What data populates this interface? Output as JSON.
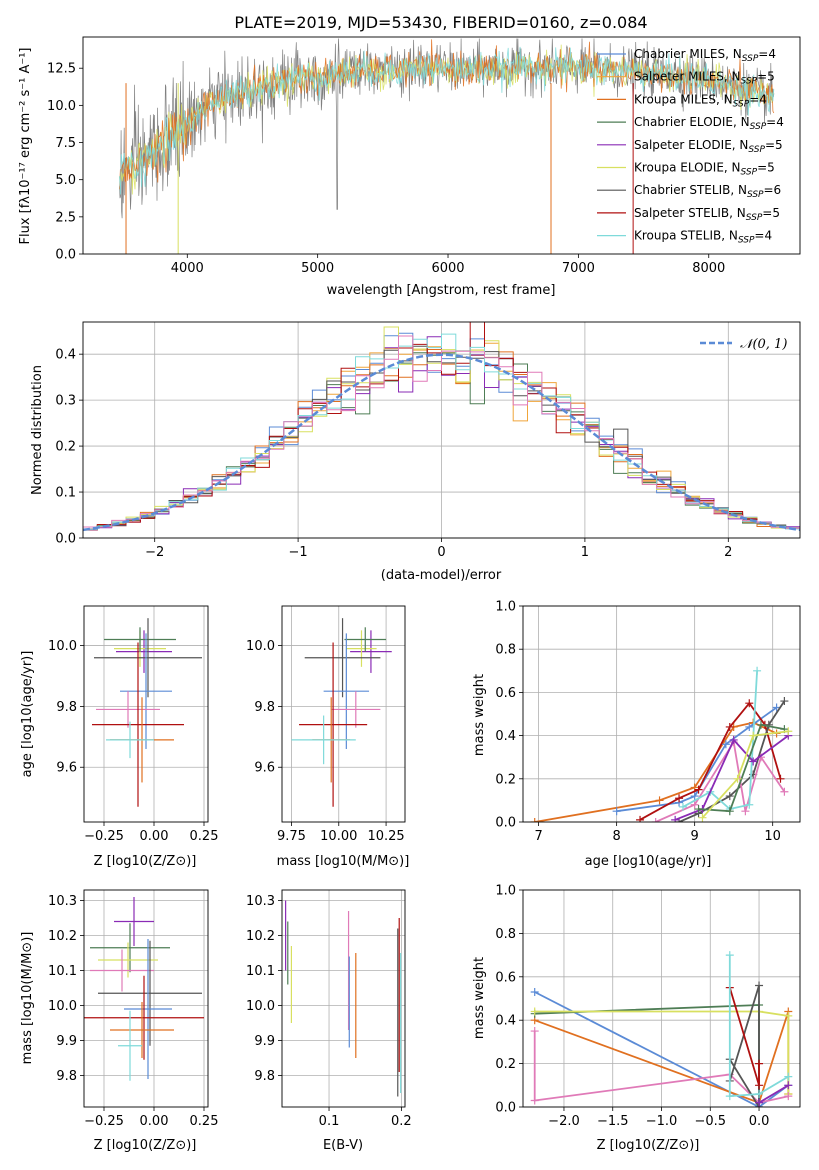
{
  "colors": {
    "Chabrier MILES": "#5b8bd6",
    "Salpeter MILES": "#f0a53a",
    "Kroupa MILES": "#e07020",
    "Chabrier ELODIE": "#4e7d55",
    "Salpeter ELODIE": "#8a2bb5",
    "Kroupa ELODIE": "#d8e060",
    "Chabrier STELIB": "#555555",
    "Salpeter STELIB": "#b01010",
    "Kroupa STELIB": "#7fdada",
    "pink": "#e07ab8",
    "spectrum": "#808080",
    "normal": "#5b8bd6"
  },
  "chart_data": [
    {
      "id": "spectrum",
      "type": "line",
      "title": "PLATE=2019, MJD=53430, FIBERID=0160, z=0.084",
      "xlabel": "wavelength [Angstrom, rest frame]",
      "ylabel": "Flux [fλ10⁻¹⁷ erg cm⁻² s⁻¹ A⁻¹]",
      "xlim": [
        3200,
        8700
      ],
      "ylim": [
        0,
        14.6
      ],
      "xticks": [
        "4000",
        "5000",
        "6000",
        "7000",
        "8000"
      ],
      "yticks": [
        "0.0",
        "2.5",
        "5.0",
        "7.5",
        "10.0",
        "12.5"
      ],
      "legend": [
        {
          "label": "Chabrier MILES, N",
          "sub": "SSP",
          "tail": "=4"
        },
        {
          "label": "Salpeter MILES, N",
          "sub": "SSP",
          "tail": "=5"
        },
        {
          "label": "Kroupa MILES, N",
          "sub": "SSP",
          "tail": "=4"
        },
        {
          "label": "Chabrier ELODIE, N",
          "sub": "SSP",
          "tail": "=4"
        },
        {
          "label": "Salpeter ELODIE, N",
          "sub": "SSP",
          "tail": "=5"
        },
        {
          "label": "Kroupa ELODIE, N",
          "sub": "SSP",
          "tail": "=5"
        },
        {
          "label": "Chabrier STELIB, N",
          "sub": "SSP",
          "tail": "=6"
        },
        {
          "label": "Salpeter STELIB, N",
          "sub": "SSP",
          "tail": "=5"
        },
        {
          "label": "Kroupa STELIB, N",
          "sub": "SSP",
          "tail": "=4"
        }
      ],
      "continuum": {
        "x": [
          3480,
          3550,
          3650,
          3800,
          4000,
          4200,
          4500,
          4800,
          5100,
          5400,
          5800,
          6200,
          6600,
          7000,
          7400,
          7800,
          8200,
          8500
        ],
        "y": [
          5.2,
          5.5,
          6.0,
          7.3,
          8.8,
          10.2,
          11.2,
          11.8,
          12.1,
          12.3,
          12.5,
          12.4,
          12.6,
          12.5,
          12.3,
          12.0,
          11.3,
          10.5
        ]
      }
    },
    {
      "id": "residuals",
      "type": "line",
      "xlabel": "(data-model)/error",
      "ylabel": "Normed distribution",
      "xlim": [
        -2.5,
        2.5
      ],
      "ylim": [
        0,
        0.47
      ],
      "xticks": [
        "−2",
        "−1",
        "0",
        "1",
        "2"
      ],
      "yticks": [
        "0.0",
        "0.1",
        "0.2",
        "0.3",
        "0.4"
      ],
      "legend_label": "N(0,1)",
      "normal": {
        "mean": 0,
        "sigma": 1
      }
    },
    {
      "id": "age-vs-Z",
      "type": "scatter",
      "xlabel": "Z [log10(Z/Z⊙)]",
      "ylabel": "age  [log10(age/yr)]",
      "xlim": [
        -0.35,
        0.27
      ],
      "ylim": [
        9.42,
        10.13
      ],
      "xticks": [
        "−0.25",
        "0.00",
        "0.25"
      ],
      "yticks": [
        "9.6",
        "9.8",
        "10.0"
      ],
      "points": [
        {
          "c": "Salpeter ELODIE",
          "x": -0.05,
          "y": 9.98,
          "xe": 0.14,
          "ye": 0.07
        },
        {
          "c": "Kroupa ELODIE",
          "x": -0.07,
          "y": 9.99,
          "xe": 0.13,
          "ye": 0.06
        },
        {
          "c": "Chabrier ELODIE",
          "x": -0.07,
          "y": 10.02,
          "xe": 0.18,
          "ye": 0.04
        },
        {
          "c": "Chabrier STELIB",
          "x": -0.03,
          "y": 9.96,
          "xe": 0.27,
          "ye": 0.13
        },
        {
          "c": "Chabrier MILES",
          "x": -0.04,
          "y": 9.85,
          "xe": 0.13,
          "ye": 0.19
        },
        {
          "c": "pink",
          "x": -0.13,
          "y": 9.79,
          "xe": 0.16,
          "ye": 0.06
        },
        {
          "c": "Salpeter STELIB",
          "x": -0.08,
          "y": 9.74,
          "xe": 0.23,
          "ye": 0.27
        },
        {
          "c": "Kroupa MILES",
          "x": -0.06,
          "y": 9.69,
          "xe": 0.16,
          "ye": 0.14
        },
        {
          "c": "Kroupa STELIB",
          "x": -0.12,
          "y": 9.69,
          "xe": 0.12,
          "ye": 0.06
        }
      ]
    },
    {
      "id": "age-vs-mass",
      "type": "scatter",
      "xlabel": "mass [log10(M/M⊙)]",
      "xlim": [
        9.7,
        10.35
      ],
      "ylim": [
        9.42,
        10.13
      ],
      "xticks": [
        "9.75",
        "10.00",
        "10.25"
      ],
      "yticks": [
        "9.6",
        "9.8",
        "10.0"
      ],
      "points": [
        {
          "c": "Salpeter ELODIE",
          "x": 10.17,
          "y": 9.98,
          "xe": 0.11,
          "ye": 0.07
        },
        {
          "c": "Kroupa ELODIE",
          "x": 10.12,
          "y": 9.99,
          "xe": 0.08,
          "ye": 0.06
        },
        {
          "c": "Chabrier ELODIE",
          "x": 10.14,
          "y": 10.02,
          "xe": 0.11,
          "ye": 0.04
        },
        {
          "c": "Chabrier STELIB",
          "x": 10.02,
          "y": 9.96,
          "xe": 0.2,
          "ye": 0.13
        },
        {
          "c": "Chabrier MILES",
          "x": 10.04,
          "y": 9.85,
          "xe": 0.12,
          "ye": 0.19
        },
        {
          "c": "pink",
          "x": 10.09,
          "y": 9.79,
          "xe": 0.13,
          "ye": 0.06
        },
        {
          "c": "Salpeter STELIB",
          "x": 9.97,
          "y": 9.74,
          "xe": 0.18,
          "ye": 0.27
        },
        {
          "c": "Kroupa MILES",
          "x": 9.96,
          "y": 9.69,
          "xe": 0.1,
          "ye": 0.14
        },
        {
          "c": "Kroupa STELIB",
          "x": 9.92,
          "y": 9.69,
          "xe": 0.17,
          "ye": 0.08
        }
      ]
    },
    {
      "id": "weight-vs-age",
      "type": "line",
      "xlabel": "age  [log10(age/yr)]",
      "ylabel": "mass weight",
      "xlim": [
        6.8,
        10.35
      ],
      "ylim": [
        0,
        1
      ],
      "xticks": [
        "7",
        "8",
        "9",
        "10"
      ],
      "yticks": [
        "0.0",
        "0.2",
        "0.4",
        "0.6",
        "0.8",
        "1.0"
      ],
      "series": [
        {
          "c": "Kroupa MILES",
          "x": [
            6.95,
            8.55,
            9.0,
            9.5,
            9.75,
            10.05
          ],
          "y": [
            0.0,
            0.1,
            0.16,
            0.44,
            0.46,
            0.41
          ]
        },
        {
          "c": "Chabrier MILES",
          "x": [
            8.0,
            8.8,
            9.0,
            9.4,
            9.7,
            10.05
          ],
          "y": [
            0.05,
            0.09,
            0.12,
            0.36,
            0.44,
            0.53
          ]
        },
        {
          "c": "Salpeter STELIB",
          "x": [
            8.3,
            8.8,
            9.05,
            9.45,
            9.7,
            9.9,
            10.1
          ],
          "y": [
            0.01,
            0.11,
            0.15,
            0.44,
            0.55,
            0.45,
            0.2
          ]
        },
        {
          "c": "Chabrier STELIB",
          "x": [
            8.8,
            9.05,
            9.45,
            9.75,
            9.95,
            10.15
          ],
          "y": [
            0.0,
            0.04,
            0.12,
            0.22,
            0.45,
            0.56
          ]
        },
        {
          "c": "pink",
          "x": [
            8.5,
            9.0,
            9.5,
            9.65,
            9.85,
            10.15
          ],
          "y": [
            0.0,
            0.08,
            0.37,
            0.05,
            0.3,
            0.14
          ]
        },
        {
          "c": "Kroupa STELIB",
          "x": [
            8.85,
            9.2,
            9.45,
            9.7,
            9.8
          ],
          "y": [
            0.07,
            0.14,
            0.06,
            0.08,
            0.7
          ]
        },
        {
          "c": "Salpeter ELODIE",
          "x": [
            8.75,
            9.1,
            9.5,
            9.75,
            10.2
          ],
          "y": [
            0.01,
            0.06,
            0.38,
            0.28,
            0.4
          ]
        },
        {
          "c": "Chabrier ELODIE",
          "x": [
            9.05,
            9.45,
            9.85,
            10.15
          ],
          "y": [
            0.06,
            0.05,
            0.45,
            0.43
          ]
        },
        {
          "c": "Kroupa ELODIE",
          "x": [
            9.1,
            9.55,
            9.75,
            10.2
          ],
          "y": [
            0.02,
            0.2,
            0.4,
            0.42
          ]
        }
      ]
    },
    {
      "id": "mass-vs-Z",
      "type": "scatter",
      "xlabel": "Z [log10(Z/Z⊙)]",
      "ylabel": "mass [log10(M/M⊙)]",
      "xlim": [
        -0.35,
        0.27
      ],
      "ylim": [
        9.71,
        10.33
      ],
      "xticks": [
        "−0.25",
        "0.00",
        "0.25"
      ],
      "yticks": [
        "9.8",
        "9.9",
        "10.0",
        "10.1",
        "10.2",
        "10.3"
      ],
      "points": [
        {
          "c": "Salpeter ELODIE",
          "x": -0.1,
          "y": 10.24,
          "xe": 0.1,
          "ye": 0.07
        },
        {
          "c": "Chabrier ELODIE",
          "x": -0.12,
          "y": 10.165,
          "xe": 0.2,
          "ye": 0.07
        },
        {
          "c": "Kroupa ELODIE",
          "x": -0.13,
          "y": 10.13,
          "xe": 0.15,
          "ye": 0.05
        },
        {
          "c": "pink",
          "x": -0.16,
          "y": 10.1,
          "xe": 0.16,
          "ye": 0.06
        },
        {
          "c": "Chabrier STELIB",
          "x": -0.02,
          "y": 10.035,
          "xe": 0.26,
          "ye": 0.15
        },
        {
          "c": "Chabrier MILES",
          "x": -0.03,
          "y": 9.99,
          "xe": 0.12,
          "ye": 0.2
        },
        {
          "c": "Salpeter STELIB",
          "x": -0.05,
          "y": 9.965,
          "xe": 0.3,
          "ye": 0.12
        },
        {
          "c": "Kroupa MILES",
          "x": -0.06,
          "y": 9.93,
          "xe": 0.16,
          "ye": 0.08
        },
        {
          "c": "Kroupa STELIB",
          "x": -0.12,
          "y": 9.885,
          "xe": 0.06,
          "ye": 0.1
        }
      ]
    },
    {
      "id": "mass-vs-ebv",
      "type": "scatter",
      "xlabel": "E(B-V)",
      "xlim": [
        0.035,
        0.205
      ],
      "ylim": [
        9.71,
        10.33
      ],
      "xticks": [
        "0.1",
        "0.2"
      ],
      "yticks": [
        "9.8",
        "9.9",
        "10.0",
        "10.1",
        "10.2",
        "10.3"
      ],
      "points": [
        {
          "c": "Salpeter ELODIE",
          "x": 0.04,
          "y": 10.2,
          "xe": 0,
          "ye": 0.1
        },
        {
          "c": "Chabrier ELODIE",
          "x": 0.043,
          "y": 10.15,
          "xe": 0,
          "ye": 0.09
        },
        {
          "c": "Kroupa ELODIE",
          "x": 0.048,
          "y": 10.06,
          "xe": 0,
          "ye": 0.11
        },
        {
          "c": "pink",
          "x": 0.127,
          "y": 10.1,
          "xe": 0,
          "ye": 0.17
        },
        {
          "c": "Chabrier MILES",
          "x": 0.128,
          "y": 10.01,
          "xe": 0,
          "ye": 0.13
        },
        {
          "c": "Kroupa MILES",
          "x": 0.137,
          "y": 10.0,
          "xe": 0,
          "ye": 0.15
        },
        {
          "c": "Salpeter STELIB",
          "x": 0.197,
          "y": 10.03,
          "xe": 0,
          "ye": 0.22
        },
        {
          "c": "Chabrier STELIB",
          "x": 0.195,
          "y": 9.98,
          "xe": 0,
          "ye": 0.24
        },
        {
          "c": "Kroupa STELIB",
          "x": 0.199,
          "y": 9.95,
          "xe": 0,
          "ye": 0.2
        }
      ]
    },
    {
      "id": "weight-vs-Z",
      "type": "line",
      "xlabel": "Z [log10(Z/Z⊙)]",
      "ylabel": "mass weight",
      "xlim": [
        -2.42,
        0.42
      ],
      "ylim": [
        0,
        1
      ],
      "xticks": [
        "−2.0",
        "−1.5",
        "−1.0",
        "−0.5",
        "0.0"
      ],
      "yticks": [
        "0.0",
        "0.2",
        "0.4",
        "0.6",
        "0.8",
        "1.0"
      ],
      "series": [
        {
          "c": "Chabrier MILES",
          "x": [
            -2.3,
            0.0,
            0.3
          ],
          "y": [
            0.53,
            0.0,
            0.1
          ]
        },
        {
          "c": "Kroupa MILES",
          "x": [
            -2.3,
            0.0,
            0.3,
            0.3
          ],
          "y": [
            0.4,
            0.02,
            0.44,
            0.06
          ]
        },
        {
          "c": "Chabrier ELODIE",
          "x": [
            -2.3,
            0.0,
            0.0
          ],
          "y": [
            0.43,
            0.47,
            0.02
          ]
        },
        {
          "c": "Kroupa ELODIE",
          "x": [
            -2.3,
            0.0,
            0.3,
            0.3
          ],
          "y": [
            0.44,
            0.44,
            0.42,
            0.06
          ]
        },
        {
          "c": "pink",
          "x": [
            -2.3,
            -2.3,
            -0.3,
            0.0,
            0.3
          ],
          "y": [
            0.35,
            0.03,
            0.15,
            0.02,
            0.05
          ]
        },
        {
          "c": "Chabrier STELIB",
          "x": [
            -0.3,
            0.0,
            0.0,
            -0.3
          ],
          "y": [
            0.22,
            0.0,
            0.56,
            0.12
          ]
        },
        {
          "c": "Salpeter STELIB",
          "x": [
            -0.3,
            0.0,
            0.0
          ],
          "y": [
            0.55,
            0.1,
            0.2
          ]
        },
        {
          "c": "Kroupa STELIB",
          "x": [
            -0.3,
            -0.3,
            0.0,
            0.3
          ],
          "y": [
            0.7,
            0.05,
            0.06,
            0.14
          ]
        },
        {
          "c": "Salpeter ELODIE",
          "x": [
            0.0,
            0.3
          ],
          "y": [
            0.02,
            0.1
          ]
        }
      ]
    }
  ]
}
